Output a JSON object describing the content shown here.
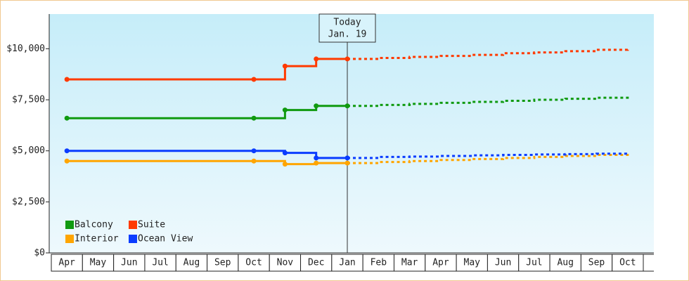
{
  "chart_data": {
    "type": "step-line",
    "categories": [
      "Apr",
      "May",
      "Jun",
      "Jul",
      "Aug",
      "Sep",
      "Oct",
      "Nov",
      "Dec",
      "Jan",
      "Feb",
      "Mar",
      "Apr",
      "May",
      "Jun",
      "Jul",
      "Aug",
      "Sep",
      "Oct"
    ],
    "ylim": [
      0,
      11700
    ],
    "yticks": [
      {
        "value": 0,
        "label": "$0"
      },
      {
        "value": 2500,
        "label": "$2,500"
      },
      {
        "value": 5000,
        "label": "$5,000"
      },
      {
        "value": 7500,
        "label": "$7,500"
      },
      {
        "value": 10000,
        "label": "$10,000"
      }
    ],
    "annotation": {
      "text": [
        "Today",
        "Jan. 19"
      ],
      "category": "Jan"
    },
    "series": [
      {
        "name": "Balcony",
        "color": "#109a10",
        "values": [
          6600,
          6600,
          6600,
          6600,
          6600,
          6600,
          6600,
          7000,
          7200,
          7200,
          null,
          null,
          null,
          null,
          null,
          null,
          null,
          null,
          null
        ],
        "projected": [
          null,
          null,
          null,
          null,
          null,
          null,
          null,
          null,
          null,
          7200,
          7250,
          7300,
          7350,
          7400,
          7450,
          7500,
          7550,
          7600,
          7700
        ]
      },
      {
        "name": "Suite",
        "color": "#ff3a00",
        "values": [
          8500,
          8500,
          8500,
          8500,
          8500,
          8500,
          8500,
          9150,
          9500,
          9500,
          null,
          null,
          null,
          null,
          null,
          null,
          null,
          null,
          null
        ],
        "projected": [
          null,
          null,
          null,
          null,
          null,
          null,
          null,
          null,
          null,
          9500,
          9550,
          9600,
          9650,
          9700,
          9780,
          9820,
          9880,
          9950,
          10050
        ]
      },
      {
        "name": "Interior",
        "color": "#ffa500",
        "values": [
          4500,
          4500,
          4500,
          4500,
          4500,
          4500,
          4500,
          4350,
          4400,
          4400,
          null,
          null,
          null,
          null,
          null,
          null,
          null,
          null,
          null
        ],
        "projected": [
          null,
          null,
          null,
          null,
          null,
          null,
          null,
          null,
          null,
          4400,
          4450,
          4500,
          4550,
          4600,
          4650,
          4700,
          4750,
          4800,
          4850
        ]
      },
      {
        "name": "Ocean View",
        "color": "#0a3cff",
        "values": [
          5000,
          5000,
          5000,
          5000,
          5000,
          5000,
          5000,
          4900,
          4650,
          4650,
          null,
          null,
          null,
          null,
          null,
          null,
          null,
          null,
          null
        ],
        "projected": [
          null,
          null,
          null,
          null,
          null,
          null,
          null,
          null,
          null,
          4650,
          4700,
          4720,
          4750,
          4780,
          4800,
          4820,
          4840,
          4860,
          4900
        ]
      }
    ]
  }
}
